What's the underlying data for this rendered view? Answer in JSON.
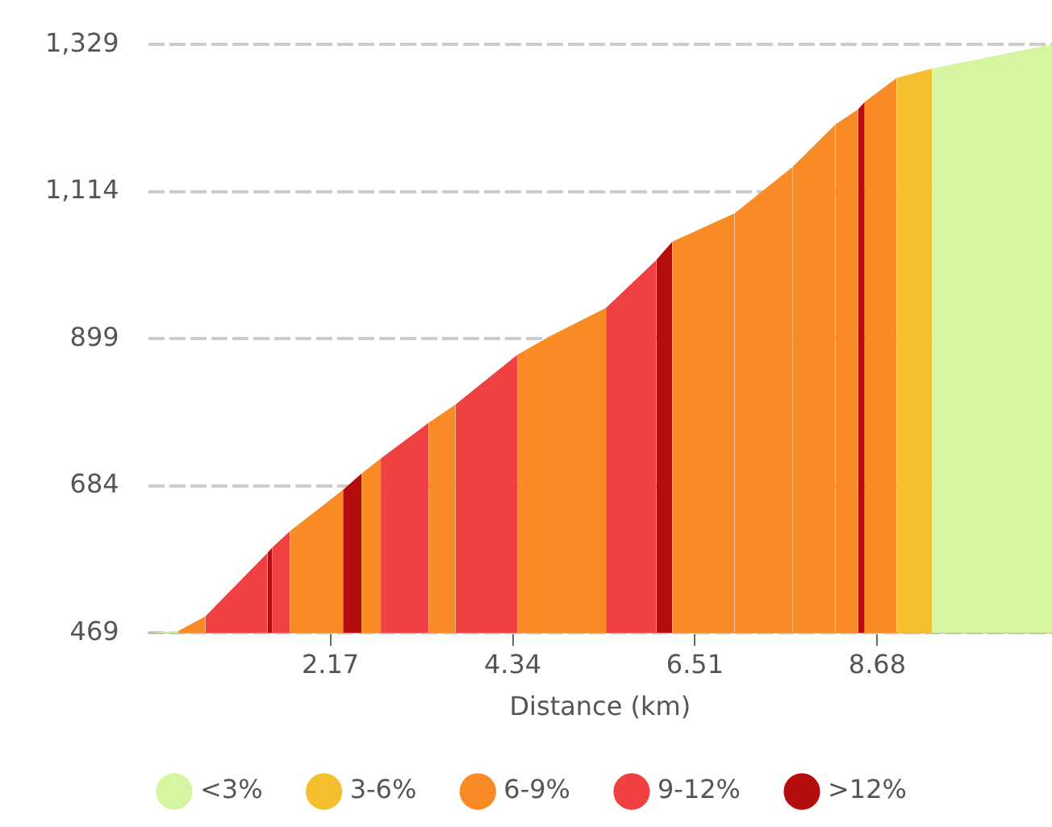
{
  "chart_data": {
    "type": "area",
    "xlabel": "Distance (km)",
    "xlim": [
      0,
      10.76
    ],
    "xticks": [
      2.17,
      4.34,
      6.51,
      8.68
    ],
    "ylim": [
      469,
      1329
    ],
    "yticks": [
      469,
      684,
      899,
      {
        "value": 1114,
        "label": "1,114"
      },
      {
        "value": 1329,
        "label": "1,329"
      }
    ],
    "grid": "y",
    "legend": "bottom",
    "series": [
      {
        "name": "<3%",
        "color": "#d6f5a0",
        "x": [
          0,
          0.36,
          null,
          9.33,
          10.76
        ],
        "values": [
          469,
          472,
          null,
          1294,
          1329
        ]
      },
      {
        "name": "3-6%",
        "color": "#f5be2e",
        "x": [
          8.91,
          9.33
        ],
        "values": [
          1280,
          1294
        ]
      },
      {
        "name": "6-9%",
        "color": "#f88b26",
        "x": [
          0.36,
          0.68,
          null,
          1.69,
          2.32,
          null,
          2.54,
          2.77,
          null,
          3.34,
          3.66,
          null,
          4.4,
          4.79,
          5.45,
          null,
          6.24,
          6.98,
          null,
          6.98,
          7.67,
          null,
          7.67,
          8.18,
          null,
          8.18,
          8.45,
          null,
          8.53,
          8.91
        ],
        "values": [
          472,
          493,
          null,
          618,
          678,
          null,
          702,
          724,
          null,
          776,
          803,
          null,
          876,
          903,
          944,
          null,
          1041,
          1082,
          null,
          1082,
          1150,
          null,
          1150,
          1212,
          null,
          1212,
          1234,
          null,
          1245,
          1280
        ]
      },
      {
        "name": "9-12%",
        "color": "#ef4141",
        "x": [
          0.68,
          1.42,
          null,
          1.48,
          1.69,
          null,
          2.77,
          3.34,
          null,
          3.66,
          4.4,
          null,
          5.45,
          6.05
        ],
        "values": [
          493,
          586,
          null,
          594,
          618,
          null,
          724,
          776,
          null,
          803,
          876,
          null,
          944,
          1014
        ]
      },
      {
        "name": ">12%",
        "color": "#b50d0d",
        "x": [
          1.42,
          1.48,
          null,
          2.32,
          2.54,
          null,
          6.05,
          6.24,
          null,
          8.45,
          8.53
        ],
        "values": [
          586,
          594,
          null,
          678,
          702,
          null,
          1014,
          1041,
          null,
          1234,
          1245
        ]
      }
    ]
  }
}
